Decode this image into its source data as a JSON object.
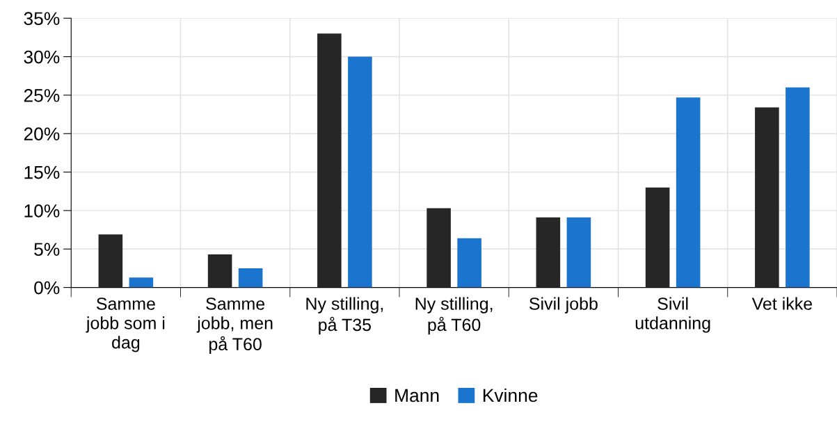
{
  "chart_data": {
    "type": "bar",
    "categories": [
      "Samme\njobb som i\ndag",
      "Samme\njobb, men\npå T60",
      "Ny stilling,\npå T35",
      "Ny stilling,\npå T60",
      "Sivil jobb",
      "Sivil\nutdanning",
      "Vet ikke"
    ],
    "series": [
      {
        "name": "Mann",
        "color": "#262626",
        "values": [
          6.9,
          4.3,
          33.0,
          10.3,
          9.1,
          13.0,
          23.4
        ]
      },
      {
        "name": "Kvinne",
        "color": "#1b75cf",
        "values": [
          1.3,
          2.5,
          30.0,
          6.4,
          9.1,
          24.7,
          26.0
        ]
      }
    ],
    "ylim": [
      0,
      35
    ],
    "yticks": [
      {
        "value": 0,
        "label": "0%"
      },
      {
        "value": 5,
        "label": "5%"
      },
      {
        "value": 10,
        "label": "10%"
      },
      {
        "value": 15,
        "label": "15%"
      },
      {
        "value": 20,
        "label": "20%"
      },
      {
        "value": 25,
        "label": "25%"
      },
      {
        "value": 30,
        "label": "30%"
      },
      {
        "value": 35,
        "label": "35%"
      }
    ],
    "grid": true,
    "legend": "bottom"
  }
}
